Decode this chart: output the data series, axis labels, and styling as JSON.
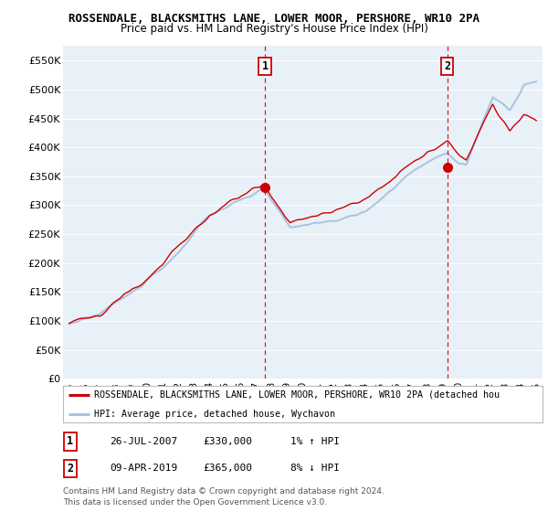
{
  "title1": "ROSSENDALE, BLACKSMITHS LANE, LOWER MOOR, PERSHORE, WR10 2PA",
  "title2": "Price paid vs. HM Land Registry's House Price Index (HPI)",
  "ylim": [
    0,
    575000
  ],
  "yticks": [
    0,
    50000,
    100000,
    150000,
    200000,
    250000,
    300000,
    350000,
    400000,
    450000,
    500000,
    550000
  ],
  "ytick_labels": [
    "£0",
    "£50K",
    "£100K",
    "£150K",
    "£200K",
    "£250K",
    "£300K",
    "£350K",
    "£400K",
    "£450K",
    "£500K",
    "£550K"
  ],
  "hpi_color": "#a8c4e0",
  "price_color": "#cc0000",
  "marker1_color": "#cc0000",
  "marker2_color": "#cc0000",
  "t1_x": 2007.569,
  "t1_y": 330000,
  "t2_x": 2019.271,
  "t2_y": 365000,
  "legend_line1": "ROSSENDALE, BLACKSMITHS LANE, LOWER MOOR, PERSHORE, WR10 2PA (detached hou",
  "legend_line2": "HPI: Average price, detached house, Wychavon",
  "table_row1_num": "1",
  "table_row1_date": "26-JUL-2007",
  "table_row1_price": "£330,000",
  "table_row1_hpi": "1% ↑ HPI",
  "table_row2_num": "2",
  "table_row2_date": "09-APR-2019",
  "table_row2_price": "£365,000",
  "table_row2_hpi": "8% ↓ HPI",
  "footer1": "Contains HM Land Registry data © Crown copyright and database right 2024.",
  "footer2": "This data is licensed under the Open Government Licence v3.0.",
  "bg_color": "#ffffff",
  "plot_bg_color": "#e8f0f8",
  "grid_color": "#ffffff",
  "xticks": [
    1995,
    1996,
    1997,
    1998,
    1999,
    2000,
    2001,
    2002,
    2003,
    2004,
    2005,
    2006,
    2007,
    2008,
    2009,
    2010,
    2011,
    2012,
    2013,
    2014,
    2015,
    2016,
    2017,
    2018,
    2019,
    2020,
    2021,
    2022,
    2023,
    2024,
    2025
  ]
}
